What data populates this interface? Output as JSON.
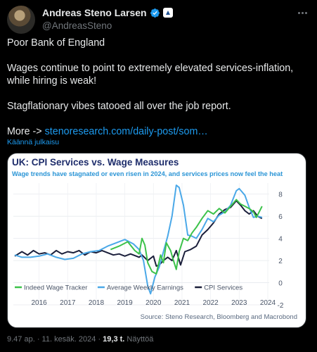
{
  "tweet": {
    "author_name": "Andreas Steno Larsen",
    "handle": "@AndreasSteno",
    "line1": "Poor Bank of England",
    "line2": "Wages continue to point to extremely elevated services-inflation, while hiring is weak!",
    "line3": "Stagflationary vibes tatooed all over the job report.",
    "more_prefix": "More -> ",
    "link_text": "stenoresearch.com/daily-post/som…",
    "translate": "Käännä julkaisu",
    "timestamp": "9.47 ap. · 11. kesäk. 2024 · ",
    "views_count": "19,3 t.",
    "views_label": " Näyttöä"
  },
  "chart_data": {
    "type": "line",
    "title": "UK: CPI Services vs. Wage Measures",
    "subtitle": "Wage trends have stagnated or even risen in 2024, and services prices now feel the heat",
    "source": "Source: Steno Research, Bloomberg and Macrobond",
    "x_ticks": [
      "2016",
      "2017",
      "2018",
      "2019",
      "2020",
      "2021",
      "2022",
      "2023",
      "2024"
    ],
    "y_ticks": [
      "8",
      "6",
      "4",
      "2",
      "0",
      "-2"
    ],
    "ylim": [
      -2,
      9
    ],
    "xlim": [
      2015.6,
      2024.55
    ],
    "legend_placement": "bottom-left",
    "series": [
      {
        "name": "Indeed Wage Tracker",
        "color": "#3cc24a",
        "points": [
          [
            2019.0,
            3.0
          ],
          [
            2019.3,
            3.3
          ],
          [
            2019.6,
            3.7
          ],
          [
            2019.85,
            2.9
          ],
          [
            2020.0,
            2.6
          ],
          [
            2020.1,
            4.0
          ],
          [
            2020.2,
            3.4
          ],
          [
            2020.3,
            1.8
          ],
          [
            2020.45,
            1.0
          ],
          [
            2020.6,
            0.8
          ],
          [
            2020.75,
            2.5
          ],
          [
            2020.85,
            1.8
          ],
          [
            2020.95,
            3.6
          ],
          [
            2021.1,
            2.9
          ],
          [
            2021.2,
            2.0
          ],
          [
            2021.3,
            1.2
          ],
          [
            2021.4,
            2.8
          ],
          [
            2021.55,
            4.0
          ],
          [
            2021.7,
            3.8
          ],
          [
            2021.85,
            4.5
          ],
          [
            2022.0,
            5.0
          ],
          [
            2022.2,
            5.8
          ],
          [
            2022.4,
            6.5
          ],
          [
            2022.6,
            6.2
          ],
          [
            2022.8,
            6.7
          ],
          [
            2023.0,
            6.3
          ],
          [
            2023.2,
            6.9
          ],
          [
            2023.4,
            7.5
          ],
          [
            2023.55,
            7.1
          ],
          [
            2023.7,
            6.9
          ],
          [
            2023.85,
            6.7
          ],
          [
            2024.0,
            6.4
          ],
          [
            2024.1,
            5.9
          ],
          [
            2024.2,
            6.4
          ],
          [
            2024.3,
            6.9
          ]
        ]
      },
      {
        "name": "Average Weekly Earnings",
        "color": "#4aa8e8",
        "points": [
          [
            2015.65,
            2.5
          ],
          [
            2015.9,
            2.3
          ],
          [
            2016.2,
            2.3
          ],
          [
            2016.5,
            2.4
          ],
          [
            2016.8,
            2.6
          ],
          [
            2017.1,
            2.3
          ],
          [
            2017.4,
            2.1
          ],
          [
            2017.7,
            2.2
          ],
          [
            2018.0,
            2.6
          ],
          [
            2018.3,
            2.8
          ],
          [
            2018.6,
            2.9
          ],
          [
            2018.9,
            3.3
          ],
          [
            2019.2,
            3.6
          ],
          [
            2019.5,
            3.9
          ],
          [
            2019.8,
            3.5
          ],
          [
            2020.0,
            3.0
          ],
          [
            2020.15,
            2.0
          ],
          [
            2020.3,
            -0.3
          ],
          [
            2020.4,
            -1.0
          ],
          [
            2020.55,
            0.5
          ],
          [
            2020.7,
            1.4
          ],
          [
            2020.85,
            2.8
          ],
          [
            2021.0,
            4.2
          ],
          [
            2021.15,
            6.0
          ],
          [
            2021.3,
            8.8
          ],
          [
            2021.4,
            8.6
          ],
          [
            2021.55,
            7.0
          ],
          [
            2021.7,
            4.3
          ],
          [
            2021.85,
            4.2
          ],
          [
            2022.0,
            4.0
          ],
          [
            2022.2,
            4.8
          ],
          [
            2022.4,
            5.8
          ],
          [
            2022.6,
            5.5
          ],
          [
            2022.8,
            6.1
          ],
          [
            2023.0,
            6.4
          ],
          [
            2023.2,
            7.0
          ],
          [
            2023.4,
            8.3
          ],
          [
            2023.5,
            8.5
          ],
          [
            2023.7,
            7.9
          ],
          [
            2023.85,
            6.8
          ],
          [
            2024.0,
            5.9
          ],
          [
            2024.15,
            6.0
          ],
          [
            2024.3,
            5.9
          ]
        ]
      },
      {
        "name": "CPI Services",
        "color": "#1b1f3b",
        "points": [
          [
            2015.65,
            2.4
          ],
          [
            2015.9,
            2.8
          ],
          [
            2016.1,
            2.5
          ],
          [
            2016.3,
            2.9
          ],
          [
            2016.5,
            2.6
          ],
          [
            2016.7,
            2.7
          ],
          [
            2016.9,
            2.5
          ],
          [
            2017.1,
            2.9
          ],
          [
            2017.3,
            2.6
          ],
          [
            2017.5,
            2.8
          ],
          [
            2017.7,
            2.7
          ],
          [
            2017.9,
            2.9
          ],
          [
            2018.1,
            2.5
          ],
          [
            2018.3,
            2.8
          ],
          [
            2018.5,
            2.7
          ],
          [
            2018.7,
            2.9
          ],
          [
            2018.9,
            2.7
          ],
          [
            2019.1,
            2.5
          ],
          [
            2019.3,
            2.6
          ],
          [
            2019.5,
            2.4
          ],
          [
            2019.7,
            2.6
          ],
          [
            2019.9,
            2.4
          ],
          [
            2020.0,
            2.3
          ],
          [
            2020.1,
            2.5
          ],
          [
            2020.3,
            2.0
          ],
          [
            2020.5,
            2.4
          ],
          [
            2020.6,
            1.5
          ],
          [
            2020.7,
            1.6
          ],
          [
            2020.85,
            2.0
          ],
          [
            2021.0,
            2.3
          ],
          [
            2021.15,
            2.0
          ],
          [
            2021.3,
            2.9
          ],
          [
            2021.45,
            1.6
          ],
          [
            2021.6,
            2.8
          ],
          [
            2021.8,
            3.0
          ],
          [
            2022.0,
            3.3
          ],
          [
            2022.2,
            4.3
          ],
          [
            2022.4,
            4.8
          ],
          [
            2022.6,
            5.4
          ],
          [
            2022.8,
            6.2
          ],
          [
            2023.0,
            6.6
          ],
          [
            2023.2,
            6.8
          ],
          [
            2023.4,
            7.4
          ],
          [
            2023.55,
            7.0
          ],
          [
            2023.7,
            6.5
          ],
          [
            2023.85,
            6.2
          ],
          [
            2024.0,
            6.5
          ],
          [
            2024.15,
            6.0
          ],
          [
            2024.3,
            5.8
          ]
        ]
      }
    ]
  }
}
